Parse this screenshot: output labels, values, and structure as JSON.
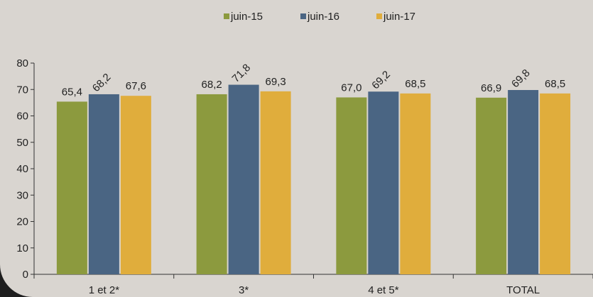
{
  "chart_data": {
    "type": "bar",
    "title": "",
    "xlabel": "",
    "ylabel": "",
    "categories": [
      "1 et 2*",
      "3*",
      "4 et 5*",
      "TOTAL"
    ],
    "series": [
      {
        "name": "juin-15",
        "color": "#8c9a3e",
        "values": [
          65.4,
          68.2,
          67.0,
          66.9
        ],
        "labels": [
          "65,4",
          "68,2",
          "67,0",
          "66,9"
        ]
      },
      {
        "name": "juin-16",
        "color": "#4a6583",
        "values": [
          68.2,
          71.8,
          69.2,
          69.8
        ],
        "labels": [
          "68,2",
          "71,8",
          "69,2",
          "69,8"
        ]
      },
      {
        "name": "juin-17",
        "color": "#e0ad3c",
        "values": [
          67.6,
          69.3,
          68.5,
          68.5
        ],
        "labels": [
          "67,6",
          "69,3",
          "68,5",
          "68,5"
        ]
      }
    ],
    "ylim": [
      0,
      80
    ],
    "yticks": [
      0,
      10,
      20,
      30,
      40,
      50,
      60,
      70,
      80
    ],
    "grid": false,
    "legend_position": "top-center"
  }
}
